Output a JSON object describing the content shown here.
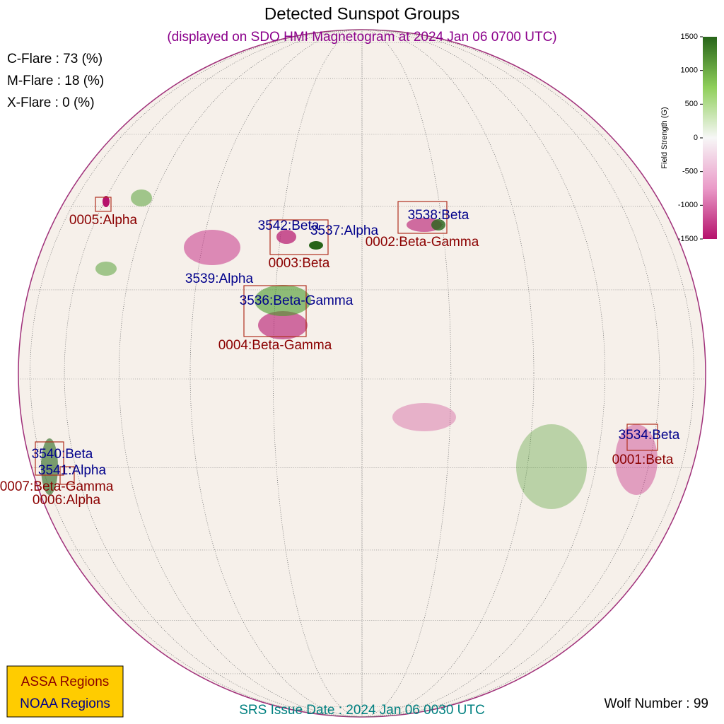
{
  "title": "Detected Sunspot Groups",
  "subtitle": "(displayed on SDO HMI Magnetogram at 2024 Jan 06 0700 UTC)",
  "flare_probabilities": [
    "C-Flare : 73 (%)",
    "M-Flare : 18 (%)",
    "X-Flare :  0 (%)"
  ],
  "colorbar": {
    "label": "Field Strength (G)",
    "lim": [
      -1500,
      1500
    ],
    "ticks": [
      1500,
      1000,
      500,
      0,
      -500,
      -1000,
      -1500
    ]
  },
  "assa_regions": [
    "0005:Alpha",
    "0003:Beta",
    "0002:Beta-Gamma",
    "0004:Beta-Gamma",
    "0001:Beta",
    "0007:Beta-Gamma",
    "0006:Alpha"
  ],
  "noaa_regions": [
    "3542:Beta",
    "3537:Alpha",
    "3538:Beta",
    "3539:Alpha",
    "3536:Beta-Gamma",
    "3534:Beta",
    "3540:Beta",
    "3541:Alpha"
  ],
  "legend": [
    "ASSA Regions",
    "NOAA Regions"
  ],
  "srs_issue_date": "SRS Issue Date : 2024 Jan 06 0030 UTC",
  "wolf_number": "Wolf Number : 99"
}
